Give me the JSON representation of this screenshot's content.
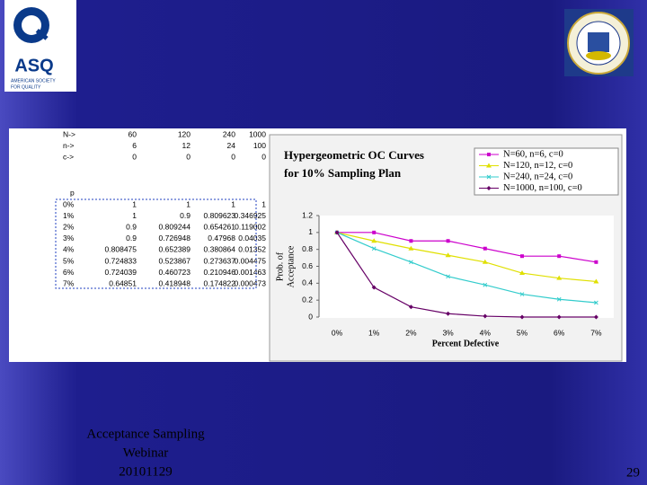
{
  "logo": {
    "name": "ASQ",
    "tagline": [
      "AMERICAN SOCIETY",
      "FOR QUALITY"
    ]
  },
  "table": {
    "params": [
      [
        "N->",
        "60",
        "120",
        "240",
        "1000"
      ],
      [
        "n->",
        "6",
        "12",
        "24",
        "100"
      ],
      [
        "c->",
        "0",
        "0",
        "0",
        "0"
      ]
    ],
    "header": "p",
    "rows": [
      [
        "0%",
        "1",
        "1",
        "1",
        "1"
      ],
      [
        "1%",
        "1",
        "0.9",
        "0.809623",
        "0.346925"
      ],
      [
        "2%",
        "0.9",
        "0.809244",
        "0.654261",
        "0.119002"
      ],
      [
        "3%",
        "0.9",
        "0.726948",
        "0.47968",
        "0.04035"
      ],
      [
        "4%",
        "0.808475",
        "0.652389",
        "0.380864",
        "0.01352"
      ],
      [
        "5%",
        "0.724833",
        "0.523867",
        "0.273637",
        "0.004475"
      ],
      [
        "6%",
        "0.724039",
        "0.460723",
        "0.210946",
        "0.001463"
      ],
      [
        "7%",
        "0.64851",
        "0.418948",
        "0.174822",
        "0.000473"
      ]
    ]
  },
  "chart_data": {
    "type": "line",
    "title": [
      "Hypergeometric OC Curves",
      "for 10% Sampling Plan"
    ],
    "y_label": [
      "Prob. of",
      "Acceptance"
    ],
    "x_label": "Percent Defective",
    "categories": [
      "0%",
      "1%",
      "2%",
      "3%",
      "4%",
      "5%",
      "6%",
      "7%"
    ],
    "ylim": [
      0,
      1.2
    ],
    "yticks": [
      0,
      0.2,
      0.4,
      0.6,
      0.8,
      1,
      1.2
    ],
    "series": [
      {
        "name": "N=60, n=6, c=0",
        "color": "#cc00cc",
        "values": [
          1,
          1,
          0.9,
          0.9,
          0.81,
          0.72,
          0.72,
          0.65
        ]
      },
      {
        "name": "N=120, n=12, c=0",
        "color": "#e0e000",
        "values": [
          1,
          0.9,
          0.81,
          0.73,
          0.65,
          0.52,
          0.46,
          0.42
        ]
      },
      {
        "name": "N=240, n=24, c=0",
        "color": "#33cccc",
        "values": [
          1,
          0.81,
          0.65,
          0.48,
          0.38,
          0.27,
          0.21,
          0.17
        ]
      },
      {
        "name": "N=1000, n=100, c=0",
        "color": "#660066",
        "values": [
          1,
          0.35,
          0.12,
          0.04,
          0.01,
          0,
          0,
          0
        ]
      }
    ]
  },
  "footer": {
    "caption": [
      "Acceptance Sampling",
      "Webinar",
      "20101129"
    ],
    "page_number": "29"
  }
}
